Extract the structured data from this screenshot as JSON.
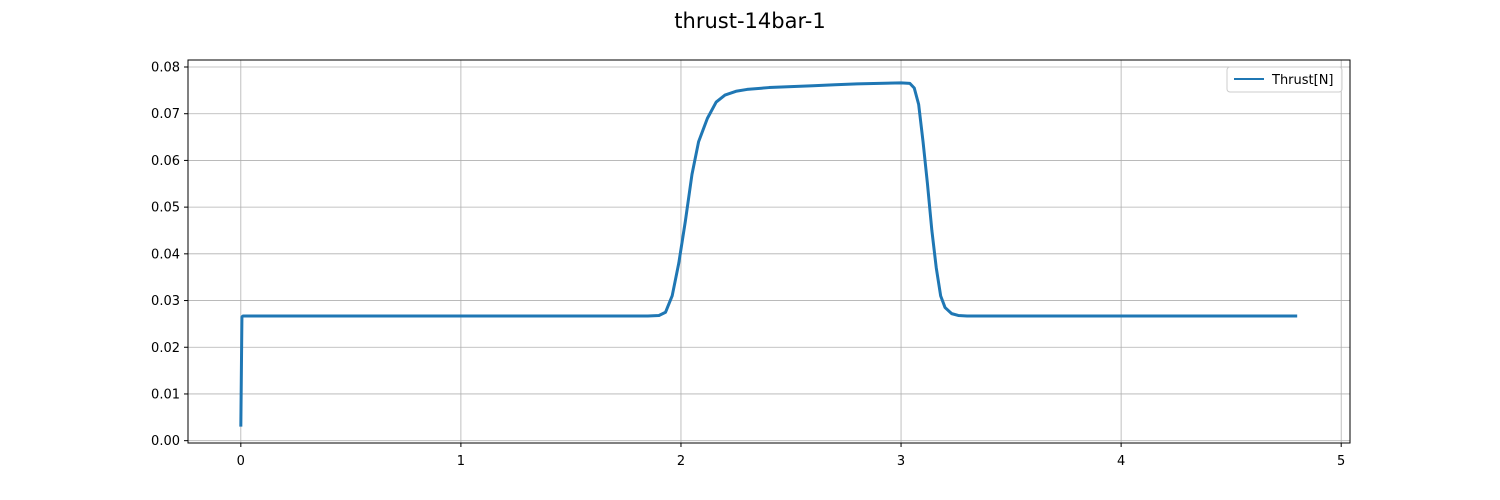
{
  "chart_data": {
    "type": "line",
    "title": "thrust-14bar-1",
    "xlabel": "",
    "ylabel": "",
    "xlim": [
      -0.24,
      5.04
    ],
    "ylim": [
      -0.0005,
      0.0815
    ],
    "xticks": [
      0,
      1,
      2,
      3,
      4,
      5
    ],
    "xtick_labels": [
      "0",
      "1",
      "2",
      "3",
      "4",
      "5"
    ],
    "yticks": [
      0.0,
      0.01,
      0.02,
      0.03,
      0.04,
      0.05,
      0.06,
      0.07,
      0.08
    ],
    "ytick_labels": [
      "0.00",
      "0.01",
      "0.02",
      "0.03",
      "0.04",
      "0.05",
      "0.06",
      "0.07",
      "0.08"
    ],
    "grid": true,
    "legend_position": "upper right",
    "series": [
      {
        "name": "Thrust[N]",
        "color": "#1f77b4",
        "x": [
          0.0,
          0.005,
          0.01,
          0.05,
          0.5,
          1.0,
          1.5,
          1.85,
          1.9,
          1.93,
          1.96,
          1.99,
          2.02,
          2.05,
          2.08,
          2.12,
          2.16,
          2.2,
          2.25,
          2.3,
          2.4,
          2.5,
          2.6,
          2.7,
          2.8,
          2.9,
          3.0,
          3.04,
          3.06,
          3.08,
          3.1,
          3.12,
          3.14,
          3.16,
          3.18,
          3.2,
          3.23,
          3.26,
          3.3,
          3.4,
          3.6,
          4.0,
          4.4,
          4.8
        ],
        "y": [
          0.003,
          0.0265,
          0.0267,
          0.0267,
          0.0267,
          0.0267,
          0.0267,
          0.0267,
          0.0268,
          0.0275,
          0.031,
          0.038,
          0.047,
          0.057,
          0.064,
          0.069,
          0.0725,
          0.074,
          0.0748,
          0.0752,
          0.0756,
          0.0758,
          0.076,
          0.0762,
          0.0764,
          0.0765,
          0.0766,
          0.0765,
          0.0755,
          0.072,
          0.064,
          0.055,
          0.045,
          0.037,
          0.031,
          0.0285,
          0.0272,
          0.0268,
          0.0267,
          0.0267,
          0.0267,
          0.0267,
          0.0267,
          0.0267
        ]
      }
    ]
  }
}
